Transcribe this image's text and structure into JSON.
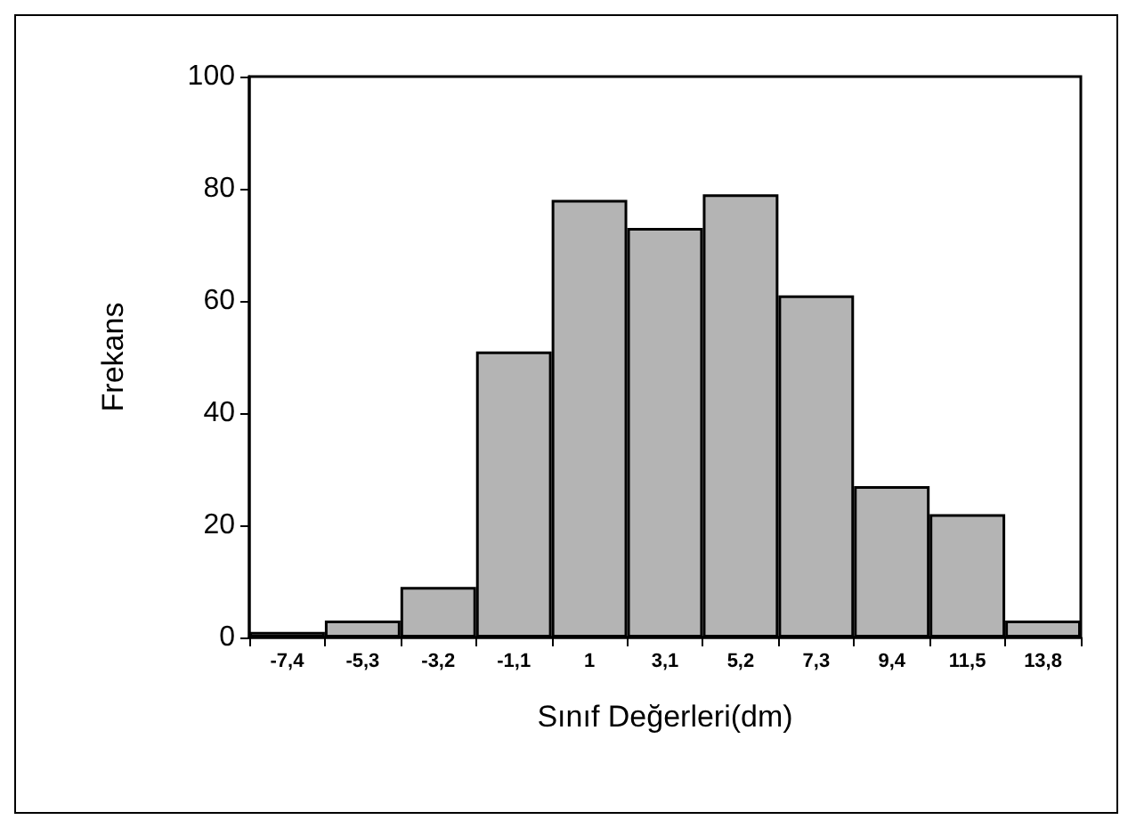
{
  "chart_data": {
    "type": "bar",
    "xlabel": "Sınıf Değerleri(dm)",
    "ylabel": "Frekans",
    "categories": [
      "-7,4",
      "-5,3",
      "-3,2",
      "-1,1",
      "1",
      "3,1",
      "5,2",
      "7,3",
      "9,4",
      "11,5",
      "13,8"
    ],
    "values": [
      1,
      3,
      9,
      51,
      78,
      73,
      79,
      61,
      27,
      22,
      3
    ],
    "color": "#b4b4b4",
    "ylim": [
      0,
      100
    ],
    "yticks": [
      0,
      20,
      40,
      60,
      80,
      100
    ],
    "grid": false
  }
}
